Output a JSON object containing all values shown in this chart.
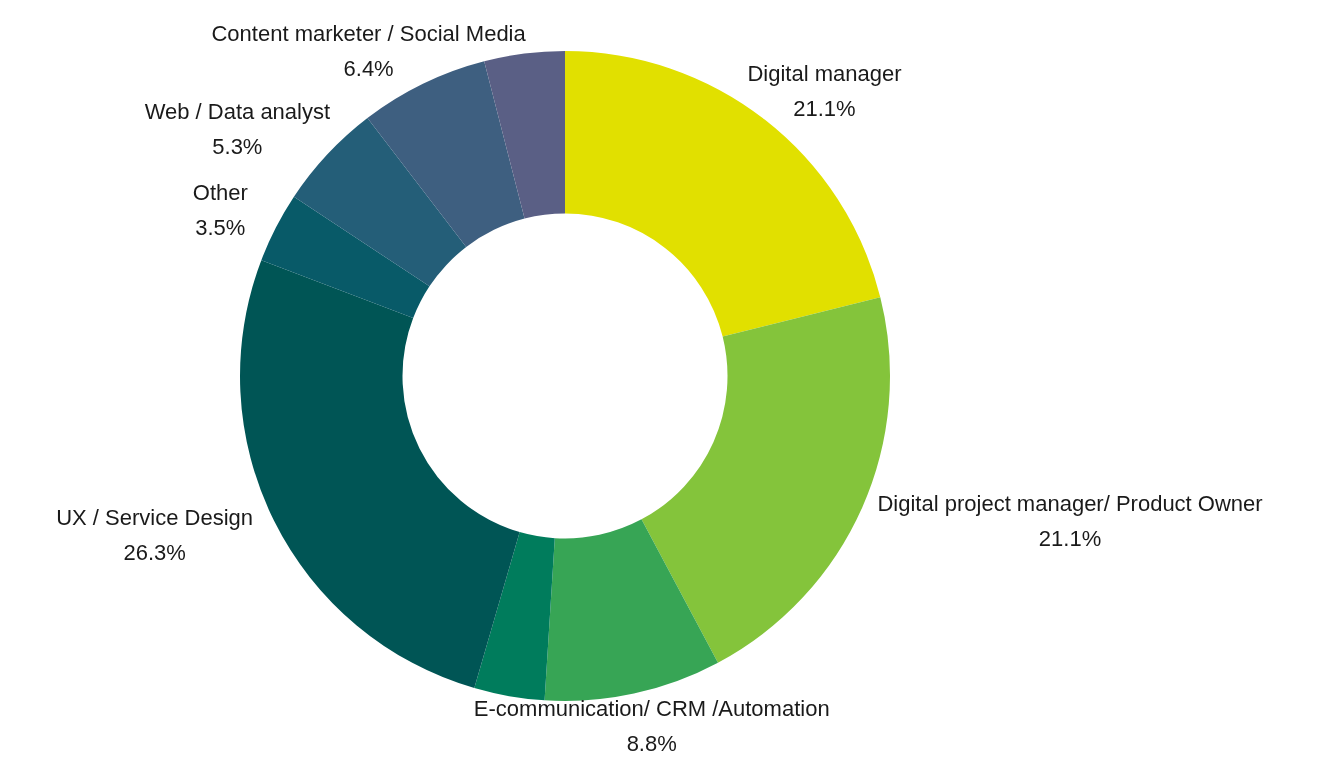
{
  "chart_data": {
    "type": "donut",
    "categories": [
      "Digital manager",
      "Digital project manager/ Product Owner",
      "E-communication/ CRM /Automation",
      null,
      "UX / Service Design",
      "Other",
      "Web / Data analyst",
      "Content marketer / Social Media",
      null
    ],
    "values": [
      21.1,
      21.1,
      8.8,
      3.5,
      26.3,
      3.5,
      5.3,
      6.4,
      4.0
    ],
    "colors": [
      "#e1e000",
      "#84c43b",
      "#37a555",
      "#007c5c",
      "#005555",
      "#085a68",
      "#245e78",
      "#3e5f80",
      "#5a5f85"
    ],
    "value_labels": [
      "21.1%",
      "21.1%",
      "8.8%",
      null,
      "26.3%",
      "3.5%",
      "5.3%",
      "6.4%",
      null
    ],
    "legend": false
  }
}
